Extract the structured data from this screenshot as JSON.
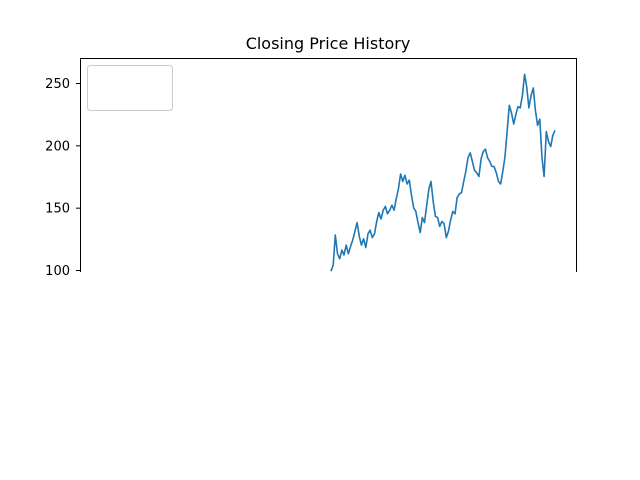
{
  "chart_data": {
    "type": "line",
    "title": "Closing Price History",
    "xlabel": "",
    "ylabel": "",
    "ylim": [
      100,
      270
    ],
    "yticks": [
      100,
      150,
      200,
      250
    ],
    "grid": false,
    "legend": {
      "placement": "top-left",
      "entries": []
    },
    "series": [
      {
        "color": "#1f77b4",
        "values": [
          99,
          104,
          128,
          113,
          109,
          116,
          112,
          120,
          113,
          119,
          124,
          131,
          138,
          127,
          120,
          125,
          118,
          129,
          132,
          126,
          129,
          139,
          146,
          141,
          148,
          151,
          145,
          148,
          152,
          148,
          157,
          165,
          177,
          171,
          176,
          169,
          172,
          160,
          150,
          147,
          138,
          130,
          142,
          138,
          152,
          165,
          171,
          155,
          143,
          142,
          135,
          139,
          137,
          126,
          131,
          140,
          147,
          145,
          158,
          161,
          162,
          171,
          179,
          190,
          194,
          187,
          180,
          178,
          175,
          189,
          195,
          197,
          190,
          187,
          183,
          183,
          178,
          171,
          169,
          179,
          191,
          212,
          232,
          226,
          217,
          225,
          231,
          230,
          240,
          257,
          247,
          230,
          240,
          246,
          228,
          216,
          221,
          190,
          175,
          211,
          203,
          199,
          208,
          212
        ]
      }
    ]
  }
}
